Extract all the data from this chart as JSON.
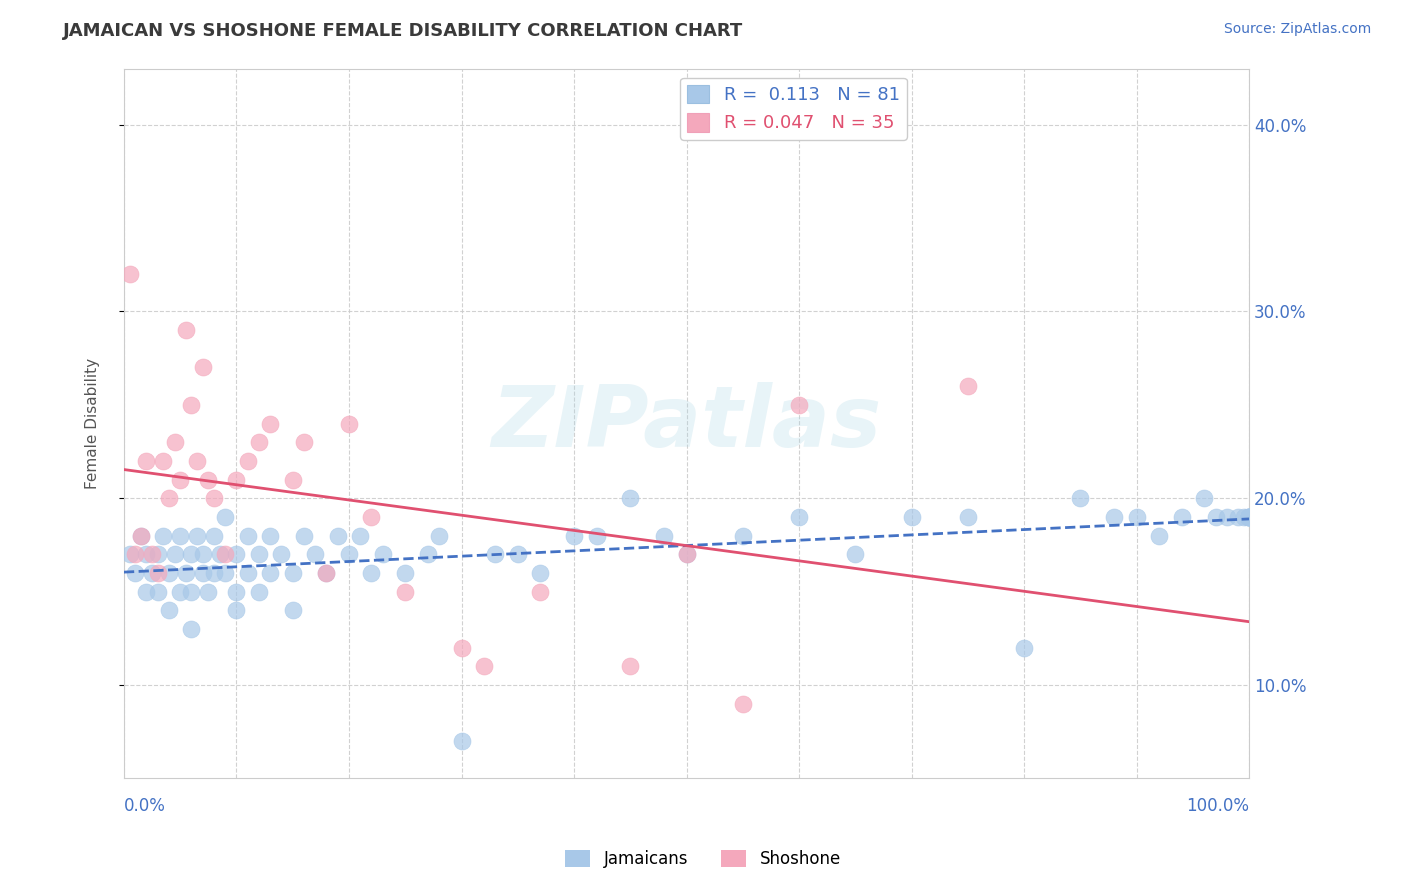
{
  "title": "JAMAICAN VS SHOSHONE FEMALE DISABILITY CORRELATION CHART",
  "source": "Source: ZipAtlas.com",
  "ylabel": "Female Disability",
  "xlim": [
    0,
    100
  ],
  "ylim": [
    5,
    43
  ],
  "ytick_values": [
    10,
    20,
    30,
    40
  ],
  "jamaican_color": "#a8c8e8",
  "shoshone_color": "#f4a8bc",
  "jamaican_line_color": "#4472c4",
  "shoshone_line_color": "#e05070",
  "axis_label_color": "#4472c4",
  "title_color": "#3a3a3a",
  "legend_jamaican": "R =  0.113   N = 81",
  "legend_shoshone": "R = 0.047   N = 35",
  "jamaican_x": [
    0.5,
    1.0,
    1.5,
    2.0,
    2.0,
    2.5,
    3.0,
    3.0,
    3.5,
    4.0,
    4.0,
    4.5,
    5.0,
    5.0,
    5.5,
    6.0,
    6.0,
    6.0,
    6.5,
    7.0,
    7.0,
    7.5,
    8.0,
    8.0,
    8.5,
    9.0,
    9.0,
    10.0,
    10.0,
    10.0,
    11.0,
    11.0,
    12.0,
    12.0,
    13.0,
    13.0,
    14.0,
    15.0,
    15.0,
    16.0,
    17.0,
    18.0,
    19.0,
    20.0,
    21.0,
    22.0,
    23.0,
    25.0,
    27.0,
    28.0,
    30.0,
    33.0,
    35.0,
    37.0,
    40.0,
    42.0,
    45.0,
    48.0,
    50.0,
    55.0,
    60.0,
    65.0,
    70.0,
    75.0,
    80.0,
    85.0,
    88.0,
    90.0,
    92.0,
    94.0,
    96.0,
    97.0,
    98.0,
    99.0,
    99.5,
    100.0,
    100.0,
    100.0,
    100.0,
    100.0,
    100.0
  ],
  "jamaican_y": [
    17.0,
    16.0,
    18.0,
    15.0,
    17.0,
    16.0,
    17.0,
    15.0,
    18.0,
    16.0,
    14.0,
    17.0,
    18.0,
    15.0,
    16.0,
    17.0,
    15.0,
    13.0,
    18.0,
    17.0,
    16.0,
    15.0,
    18.0,
    16.0,
    17.0,
    19.0,
    16.0,
    17.0,
    15.0,
    14.0,
    18.0,
    16.0,
    17.0,
    15.0,
    18.0,
    16.0,
    17.0,
    16.0,
    14.0,
    18.0,
    17.0,
    16.0,
    18.0,
    17.0,
    18.0,
    16.0,
    17.0,
    16.0,
    17.0,
    18.0,
    7.0,
    17.0,
    17.0,
    16.0,
    18.0,
    18.0,
    20.0,
    18.0,
    17.0,
    18.0,
    19.0,
    17.0,
    19.0,
    19.0,
    12.0,
    20.0,
    19.0,
    19.0,
    18.0,
    19.0,
    20.0,
    19.0,
    19.0,
    19.0,
    19.0,
    19.0,
    19.0,
    19.0,
    19.0,
    19.0,
    19.0
  ],
  "shoshone_x": [
    0.5,
    1.0,
    1.5,
    2.0,
    2.5,
    3.0,
    3.5,
    4.0,
    4.5,
    5.0,
    5.5,
    6.0,
    6.5,
    7.0,
    7.5,
    8.0,
    9.0,
    10.0,
    11.0,
    12.0,
    13.0,
    15.0,
    16.0,
    18.0,
    20.0,
    22.0,
    25.0,
    30.0,
    32.0,
    37.0,
    45.0,
    50.0,
    55.0,
    60.0,
    75.0
  ],
  "shoshone_y": [
    32.0,
    17.0,
    18.0,
    22.0,
    17.0,
    16.0,
    22.0,
    20.0,
    23.0,
    21.0,
    29.0,
    25.0,
    22.0,
    27.0,
    21.0,
    20.0,
    17.0,
    21.0,
    22.0,
    23.0,
    24.0,
    21.0,
    23.0,
    16.0,
    24.0,
    19.0,
    15.0,
    12.0,
    11.0,
    15.0,
    11.0,
    17.0,
    9.0,
    25.0,
    26.0
  ]
}
